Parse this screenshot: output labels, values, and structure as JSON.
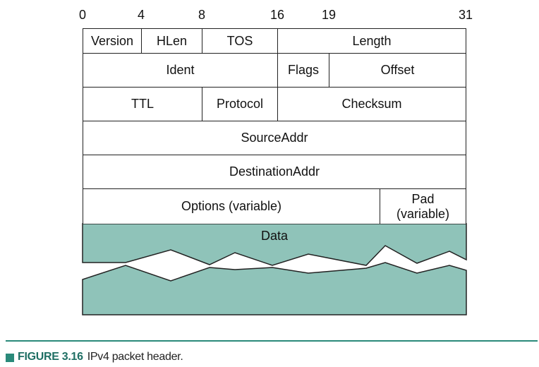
{
  "bit_positions": [
    "0",
    "4",
    "8",
    "16",
    "19",
    "31"
  ],
  "fields": {
    "version": "Version",
    "hlen": "HLen",
    "tos": "TOS",
    "length": "Length",
    "ident": "Ident",
    "flags": "Flags",
    "offset": "Offset",
    "ttl": "TTL",
    "protocol": "Protocol",
    "checksum": "Checksum",
    "source_addr": "SourceAddr",
    "destination_addr": "DestinationAddr",
    "options": "Options (variable)",
    "pad_line1": "Pad",
    "pad_line2": "(variable)",
    "data": "Data"
  },
  "colors": {
    "data_fill": "#8fc3b9",
    "accent": "#2a8a7a"
  },
  "caption": {
    "label": "FIGURE 3.16",
    "text": "IPv4 packet header."
  }
}
